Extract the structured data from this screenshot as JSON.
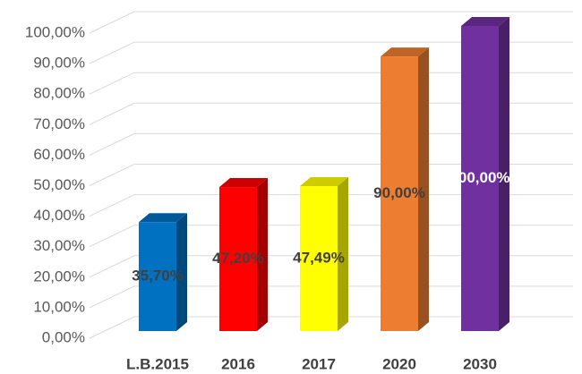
{
  "chart_data": {
    "type": "bar3d",
    "categories": [
      "L.B.2015",
      "2016",
      "2017",
      "2020",
      "2030"
    ],
    "values": [
      35.7,
      47.2,
      47.49,
      90,
      100
    ],
    "value_labels": [
      "35,70%",
      "47,20%",
      "47,49%",
      "90,00%",
      "100,00%"
    ],
    "colors": [
      "#0070c0",
      "#ff0000",
      "#ffff00",
      "#ed7d31",
      "#7030a0"
    ],
    "label_colors": [
      "#404040",
      "#404040",
      "#404040",
      "#404040",
      "#ffffff"
    ],
    "ylim": [
      0,
      100
    ],
    "yticks": [
      {
        "value": 0,
        "label": "0,00%"
      },
      {
        "value": 10,
        "label": "10,00%"
      },
      {
        "value": 20,
        "label": "20,00%"
      },
      {
        "value": 30,
        "label": "30,00%"
      },
      {
        "value": 40,
        "label": "40,00%"
      },
      {
        "value": 50,
        "label": "50,00%"
      },
      {
        "value": 60,
        "label": "60,00%"
      },
      {
        "value": 70,
        "label": "70,00%"
      },
      {
        "value": 80,
        "label": "80,00%"
      },
      {
        "value": 90,
        "label": "90,00%"
      },
      {
        "value": 100,
        "label": "100,00%"
      }
    ],
    "grid": true
  }
}
